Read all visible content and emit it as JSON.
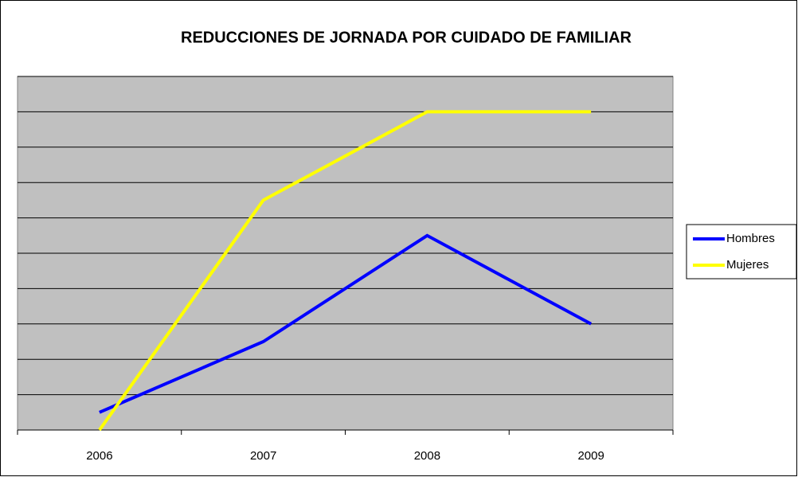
{
  "chart_data": {
    "type": "line",
    "title": "REDUCCIONES DE JORNADA POR CUIDADO DE FAMILIAR",
    "categories": [
      "2006",
      "2007",
      "2008",
      "2009"
    ],
    "series": [
      {
        "name": "Hombres",
        "color": "#0000ff",
        "values": [
          0.5,
          2.5,
          5.5,
          3
        ]
      },
      {
        "name": "Mujeres",
        "color": "#ffff00",
        "values": [
          0,
          6.5,
          9,
          9
        ]
      }
    ],
    "ylim": [
      0,
      10
    ],
    "yticks": [
      1,
      2,
      3,
      4,
      5,
      6,
      7,
      8,
      9,
      10
    ],
    "tick_labels": false,
    "grid": true,
    "legend": "right"
  }
}
